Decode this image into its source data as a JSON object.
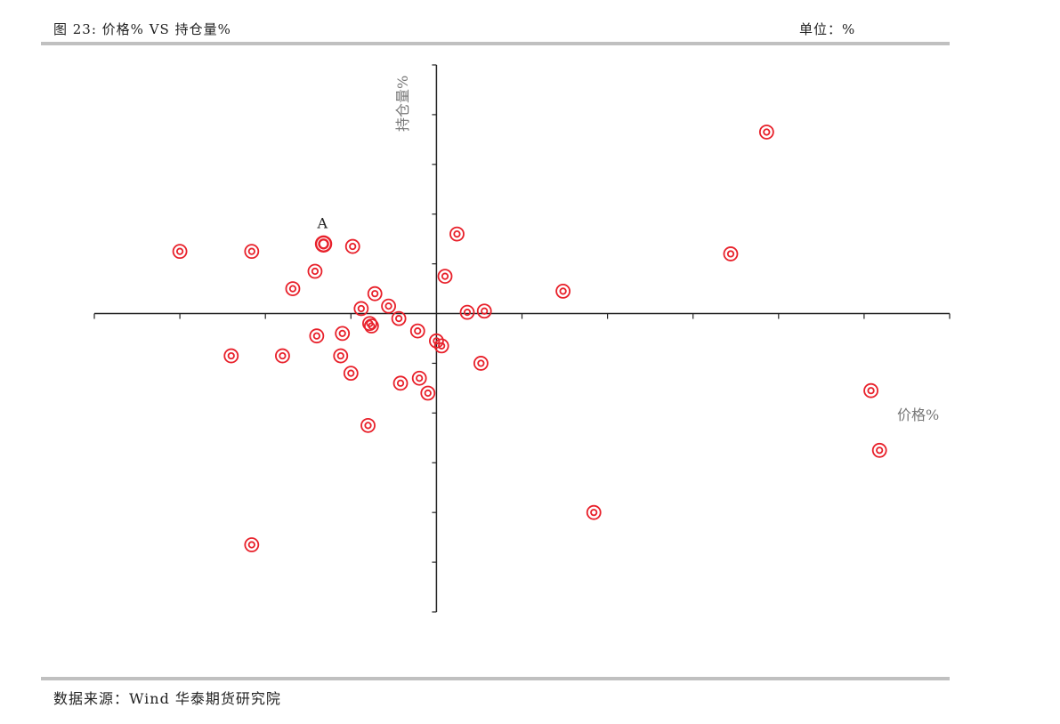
{
  "header": {
    "title": "图 23:     价格% VS  持仓量%",
    "unit": "单位：%"
  },
  "footer": {
    "source": "数据来源：Wind  华泰期货研究院"
  },
  "colors": {
    "marker": "#e8202a",
    "axis": "#222222",
    "rule": "#c0c0c0"
  },
  "chart_data": {
    "type": "scatter",
    "title": "价格% VS  持仓量%",
    "xlabel": "价格%",
    "ylabel": "持仓量%",
    "xlim": [
      -20,
      30
    ],
    "ylim": [
      -12,
      10
    ],
    "x_ticks": [
      -15,
      -10,
      -5,
      5,
      10,
      15,
      20,
      25
    ],
    "y_ticks": [
      -10,
      -8,
      -6,
      -4,
      -2,
      2,
      4,
      6,
      8
    ],
    "grid": false,
    "legend": "none",
    "annotations": [
      {
        "text": "A",
        "x": -6.6,
        "y": 2.8
      }
    ],
    "highlight_index": 0,
    "series": [
      {
        "points": [
          {
            "x": -6.6,
            "y": 2.8
          },
          {
            "x": -15.0,
            "y": 2.5
          },
          {
            "x": -10.8,
            "y": 2.5
          },
          {
            "x": -4.9,
            "y": 2.7
          },
          {
            "x": 1.2,
            "y": 3.2
          },
          {
            "x": 0.5,
            "y": 1.5
          },
          {
            "x": -7.1,
            "y": 1.7
          },
          {
            "x": -8.4,
            "y": 1.0
          },
          {
            "x": -3.6,
            "y": 0.8
          },
          {
            "x": -2.8,
            "y": 0.3
          },
          {
            "x": -4.4,
            "y": 0.2
          },
          {
            "x": 1.8,
            "y": 0.05
          },
          {
            "x": 2.8,
            "y": 0.1
          },
          {
            "x": 7.4,
            "y": 0.9
          },
          {
            "x": -2.2,
            "y": -0.2
          },
          {
            "x": -3.9,
            "y": -0.4
          },
          {
            "x": -3.8,
            "y": -0.5
          },
          {
            "x": -1.1,
            "y": -0.7
          },
          {
            "x": -5.5,
            "y": -0.8
          },
          {
            "x": -7.0,
            "y": -0.9
          },
          {
            "x": 0.0,
            "y": -1.1
          },
          {
            "x": 0.3,
            "y": -1.3
          },
          {
            "x": -12.0,
            "y": -1.7
          },
          {
            "x": -9.0,
            "y": -1.7
          },
          {
            "x": -5.6,
            "y": -1.7
          },
          {
            "x": -5.0,
            "y": -2.4
          },
          {
            "x": 2.6,
            "y": -2.0
          },
          {
            "x": -2.1,
            "y": -2.8
          },
          {
            "x": -1.0,
            "y": -2.6
          },
          {
            "x": -0.5,
            "y": -3.2
          },
          {
            "x": -4.0,
            "y": -4.5
          },
          {
            "x": 9.2,
            "y": -8.0
          },
          {
            "x": -10.8,
            "y": -9.3
          },
          {
            "x": 17.2,
            "y": 2.4
          },
          {
            "x": 19.3,
            "y": 7.3
          },
          {
            "x": 25.4,
            "y": -3.1
          },
          {
            "x": 25.9,
            "y": -5.5
          }
        ]
      }
    ]
  }
}
